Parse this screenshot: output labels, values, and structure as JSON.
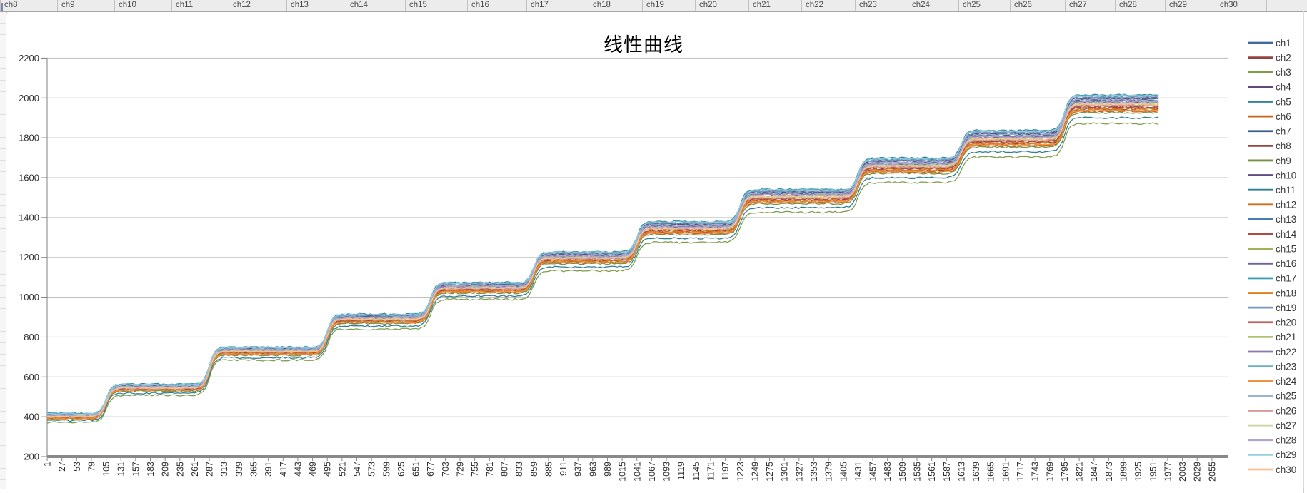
{
  "worksheet": {
    "header_row": {
      "labels": [
        "ch8",
        "ch9",
        "ch10",
        "ch11",
        "ch12",
        "ch13",
        "ch14",
        "ch15",
        "ch16",
        "ch17",
        "ch18",
        "ch19",
        "ch20",
        "ch21",
        "ch22",
        "ch23",
        "ch24",
        "ch25",
        "ch26",
        "ch27",
        "ch28",
        "ch29",
        "ch30"
      ],
      "x_positions": [
        6,
        86,
        166,
        246,
        326,
        407,
        490,
        573,
        660,
        743,
        830,
        905,
        979,
        1054,
        1128,
        1203,
        1277,
        1348,
        1420,
        1497,
        1567,
        1637,
        1708
      ]
    }
  },
  "chart_data": {
    "type": "line",
    "title": "线性曲线",
    "grid": true,
    "legend_position": "right",
    "y_axis": {
      "min": 200,
      "max": 2200,
      "tick_step": 200,
      "ticks": [
        200,
        400,
        600,
        800,
        1000,
        1200,
        1400,
        1600,
        1800,
        2000,
        2200
      ]
    },
    "x_axis": {
      "first": 1,
      "step": 26,
      "last": 2055,
      "axis_end_value": 2082,
      "tick_labels": [
        1,
        27,
        53,
        79,
        105,
        131,
        157,
        183,
        209,
        235,
        261,
        287,
        313,
        339,
        365,
        391,
        417,
        443,
        469,
        495,
        521,
        547,
        573,
        599,
        625,
        651,
        677,
        703,
        729,
        755,
        781,
        807,
        833,
        859,
        885,
        911,
        937,
        963,
        989,
        1015,
        1041,
        1067,
        1093,
        1119,
        1145,
        1171,
        1197,
        1223,
        1249,
        1275,
        1301,
        1327,
        1353,
        1379,
        1405,
        1431,
        1457,
        1483,
        1509,
        1535,
        1561,
        1587,
        1613,
        1639,
        1665,
        1691,
        1717,
        1743,
        1769,
        1795,
        1821,
        1847,
        1873,
        1899,
        1925,
        1951,
        1977,
        2003,
        2029,
        2055
      ]
    },
    "steps": {
      "levels": [
        402,
        545,
        728,
        890,
        1046,
        1196,
        1345,
        1503,
        1658,
        1793,
        1968
      ],
      "rise_x": [
        105,
        287,
        495,
        677,
        859,
        1041,
        1223,
        1431,
        1613,
        1795
      ],
      "rise_width": 5,
      "data_end_x": 1963,
      "band_half_width_base": 15,
      "band_half_width_per_step": 3.2,
      "noise_amplitude": 4.5
    },
    "series": [
      {
        "name": "ch1",
        "color": "#406A9B",
        "band_offset": 0.55
      },
      {
        "name": "ch2",
        "color": "#96413C",
        "band_offset": -0.5
      },
      {
        "name": "ch3",
        "color": "#7F9A48",
        "band_offset": -2.05
      },
      {
        "name": "ch4",
        "color": "#5F497A",
        "band_offset": 0.7
      },
      {
        "name": "ch5",
        "color": "#31859C",
        "band_offset": 1.0
      },
      {
        "name": "ch6",
        "color": "#C8651B",
        "band_offset": -0.75
      },
      {
        "name": "ch7",
        "color": "#38618F",
        "band_offset": 0.45
      },
      {
        "name": "ch8",
        "color": "#9A423C",
        "band_offset": -0.35
      },
      {
        "name": "ch9",
        "color": "#789143",
        "band_offset": -0.9
      },
      {
        "name": "ch10",
        "color": "#624C80",
        "band_offset": 0.6
      },
      {
        "name": "ch11",
        "color": "#2E7F95",
        "band_offset": -1.45
      },
      {
        "name": "ch12",
        "color": "#D0701D",
        "band_offset": -0.6
      },
      {
        "name": "ch13",
        "color": "#4A7CB5",
        "band_offset": 0.3
      },
      {
        "name": "ch14",
        "color": "#AC4A44",
        "band_offset": -0.25
      },
      {
        "name": "ch15",
        "color": "#9EB356",
        "band_offset": -0.05
      },
      {
        "name": "ch16",
        "color": "#756195",
        "band_offset": 0.2
      },
      {
        "name": "ch17",
        "color": "#45A0B5",
        "band_offset": 0.85
      },
      {
        "name": "ch18",
        "color": "#E08119",
        "band_offset": -0.45
      },
      {
        "name": "ch19",
        "color": "#7B97C1",
        "band_offset": 0.75
      },
      {
        "name": "ch20",
        "color": "#BA6360",
        "band_offset": -0.15
      },
      {
        "name": "ch21",
        "color": "#AEC474",
        "band_offset": 0.1
      },
      {
        "name": "ch22",
        "color": "#8B79A9",
        "band_offset": 0.35
      },
      {
        "name": "ch23",
        "color": "#64B1C5",
        "band_offset": 0.95
      },
      {
        "name": "ch24",
        "color": "#F09145",
        "band_offset": -0.65
      },
      {
        "name": "ch25",
        "color": "#9AB2D3",
        "band_offset": 0.5
      },
      {
        "name": "ch26",
        "color": "#D89A97",
        "band_offset": -0.1
      },
      {
        "name": "ch27",
        "color": "#C4D79D",
        "band_offset": 0.05
      },
      {
        "name": "ch28",
        "color": "#B3A5C9",
        "band_offset": 0.25
      },
      {
        "name": "ch29",
        "color": "#96CEDD",
        "band_offset": 0.9
      },
      {
        "name": "ch30",
        "color": "#FAC095",
        "band_offset": 0.0
      }
    ]
  },
  "colors": {
    "gridline": "#BFBFBF",
    "axis_line": "#808080",
    "x_axis_bar": "#898989",
    "tick_label": "#303030",
    "legend_text": "#383838",
    "header_text": "#4A4A4A",
    "chart_right_edge": "#DCDCDC"
  }
}
